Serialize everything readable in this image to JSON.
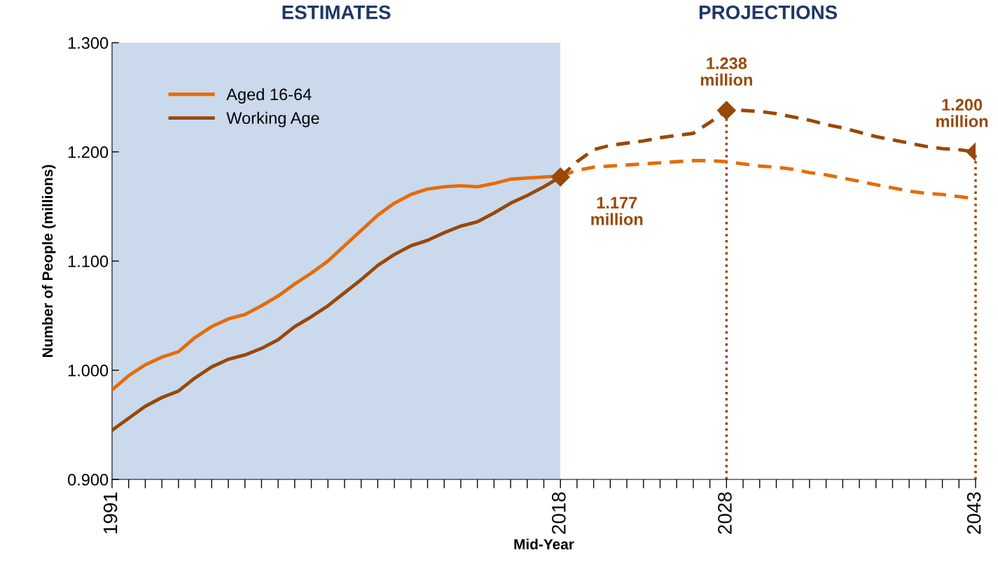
{
  "chart_data": {
    "type": "line",
    "xlabel": "Mid-Year",
    "ylabel": "Number of People (millions)",
    "xlim": [
      1991,
      2043
    ],
    "xticks": [
      1991,
      {
        "value": 1992,
        "label": null
      },
      {
        "value": 1993,
        "label": null
      },
      {
        "value": 1994,
        "label": null
      },
      {
        "value": 1995,
        "label": null
      },
      {
        "value": 1996,
        "label": null
      },
      {
        "value": 1997,
        "label": null
      },
      {
        "value": 1998,
        "label": null
      },
      {
        "value": 1999,
        "label": null
      },
      {
        "value": 2000,
        "label": null
      },
      {
        "value": 2001,
        "label": null
      },
      {
        "value": 2002,
        "label": null
      },
      {
        "value": 2003,
        "label": null
      },
      {
        "value": 2004,
        "label": null
      },
      {
        "value": 2005,
        "label": null
      },
      {
        "value": 2006,
        "label": null
      },
      {
        "value": 2007,
        "label": null
      },
      {
        "value": 2008,
        "label": null
      },
      {
        "value": 2009,
        "label": null
      },
      {
        "value": 2010,
        "label": null
      },
      {
        "value": 2011,
        "label": null
      },
      {
        "value": 2012,
        "label": null
      },
      {
        "value": 2013,
        "label": null
      },
      {
        "value": 2014,
        "label": null
      },
      {
        "value": 2015,
        "label": null
      },
      {
        "value": 2016,
        "label": null
      },
      {
        "value": 2017,
        "label": null
      },
      2018,
      {
        "value": 2019,
        "label": null
      },
      {
        "value": 2020,
        "label": null
      },
      {
        "value": 2021,
        "label": null
      },
      {
        "value": 2022,
        "label": null
      },
      {
        "value": 2023,
        "label": null
      },
      {
        "value": 2024,
        "label": null
      },
      {
        "value": 2025,
        "label": null
      },
      {
        "value": 2026,
        "label": null
      },
      {
        "value": 2027,
        "label": null
      },
      2028,
      {
        "value": 2029,
        "label": null
      },
      {
        "value": 2030,
        "label": null
      },
      {
        "value": 2031,
        "label": null
      },
      {
        "value": 2032,
        "label": null
      },
      {
        "value": 2033,
        "label": null
      },
      {
        "value": 2034,
        "label": null
      },
      {
        "value": 2035,
        "label": null
      },
      {
        "value": 2036,
        "label": null
      },
      {
        "value": 2037,
        "label": null
      },
      {
        "value": 2038,
        "label": null
      },
      {
        "value": 2039,
        "label": null
      },
      {
        "value": 2040,
        "label": null
      },
      {
        "value": 2041,
        "label": null
      },
      {
        "value": 2042,
        "label": null
      },
      2043
    ],
    "ylim": [
      0.9,
      1.3
    ],
    "yticks": [
      {
        "value": 0.9,
        "label": "0.900"
      },
      {
        "value": 1.0,
        "label": "1.000"
      },
      {
        "value": 1.1,
        "label": "1.100"
      },
      {
        "value": 1.2,
        "label": "1.200"
      },
      {
        "value": 1.3,
        "label": "1.300"
      }
    ],
    "grid": false,
    "legend": "top left",
    "series": [
      {
        "name": "Aged 16-64",
        "color": "#e46c0a",
        "line_style": "solid",
        "x": [
          1991,
          1992,
          1993,
          1994,
          1995,
          1996,
          1997,
          1998,
          1999,
          2000,
          2001,
          2002,
          2003,
          2004,
          2005,
          2006,
          2007,
          2008,
          2009,
          2010,
          2011,
          2012,
          2013,
          2014,
          2015,
          2016,
          2017,
          2018
        ],
        "values": [
          0.982,
          0.995,
          1.005,
          1.012,
          1.017,
          1.03,
          1.04,
          1.047,
          1.051,
          1.059,
          1.068,
          1.079,
          1.089,
          1.1,
          1.114,
          1.128,
          1.142,
          1.153,
          1.161,
          1.166,
          1.168,
          1.169,
          1.168,
          1.171,
          1.175,
          1.176,
          1.177,
          1.178
        ]
      },
      {
        "name": "Working Age",
        "color": "#984807",
        "line_style": "solid",
        "x": [
          1991,
          1992,
          1993,
          1994,
          1995,
          1996,
          1997,
          1998,
          1999,
          2000,
          2001,
          2002,
          2003,
          2004,
          2005,
          2006,
          2007,
          2008,
          2009,
          2010,
          2011,
          2012,
          2013,
          2014,
          2015,
          2016,
          2017,
          2018
        ],
        "values": [
          0.945,
          0.956,
          0.967,
          0.975,
          0.981,
          0.993,
          1.003,
          1.01,
          1.014,
          1.02,
          1.028,
          1.04,
          1.049,
          1.059,
          1.071,
          1.083,
          1.096,
          1.106,
          1.114,
          1.119,
          1.126,
          1.132,
          1.136,
          1.144,
          1.153,
          1.16,
          1.168,
          1.177
        ]
      },
      {
        "color": "#e46c0a",
        "line_style": "dashed",
        "x": [
          2018,
          2019,
          2020,
          2021,
          2022,
          2023,
          2024,
          2025,
          2026,
          2027,
          2028,
          2029,
          2030,
          2031,
          2032,
          2033,
          2034,
          2035,
          2036,
          2037,
          2038,
          2039,
          2040,
          2041,
          2042,
          2043
        ],
        "values": [
          1.178,
          1.183,
          1.186,
          1.187,
          1.188,
          1.189,
          1.19,
          1.191,
          1.192,
          1.192,
          1.191,
          1.189,
          1.187,
          1.186,
          1.184,
          1.181,
          1.179,
          1.176,
          1.173,
          1.17,
          1.167,
          1.164,
          1.162,
          1.161,
          1.159,
          1.157
        ]
      },
      {
        "color": "#984807",
        "line_style": "dashed",
        "x": [
          2018,
          2019,
          2020,
          2021,
          2022,
          2023,
          2024,
          2025,
          2026,
          2027,
          2028,
          2029,
          2030,
          2031,
          2032,
          2033,
          2034,
          2035,
          2036,
          2037,
          2038,
          2039,
          2040,
          2041,
          2042,
          2043
        ],
        "values": [
          1.177,
          1.191,
          1.202,
          1.206,
          1.208,
          1.21,
          1.213,
          1.215,
          1.217,
          1.227,
          1.238,
          1.238,
          1.237,
          1.235,
          1.232,
          1.229,
          1.225,
          1.222,
          1.218,
          1.214,
          1.211,
          1.208,
          1.205,
          1.203,
          1.202,
          1.2
        ]
      },
      {
        "type": "scatter",
        "color": "#984807",
        "marker": "diamond",
        "x": [
          2018,
          2028,
          2043
        ],
        "values": [
          1.177,
          1.238,
          1.2
        ]
      }
    ],
    "ref_lines": [
      {
        "axis": "x",
        "value": 2028,
        "color": "#984807",
        "line_style": "dotted"
      },
      {
        "axis": "x",
        "value": 2043,
        "color": "#984807",
        "line_style": "dotted"
      }
    ],
    "bands": [
      {
        "axis": "x",
        "from": 1991,
        "to": 2018,
        "label": "ESTIMATES",
        "color": "#cad9ec"
      },
      {
        "axis": "x",
        "from": 2018,
        "to": 2043,
        "label": "PROJECTIONS",
        "color": "#ffffff"
      }
    ],
    "annotations": [
      {
        "text": "1.177\nmillion",
        "x": 2018,
        "y": 1.177
      },
      {
        "text": "1.238\nmillion",
        "x": 2028,
        "y": 1.238
      },
      {
        "text": "1.200\nmillion",
        "x": 2043,
        "y": 1.2
      }
    ]
  }
}
